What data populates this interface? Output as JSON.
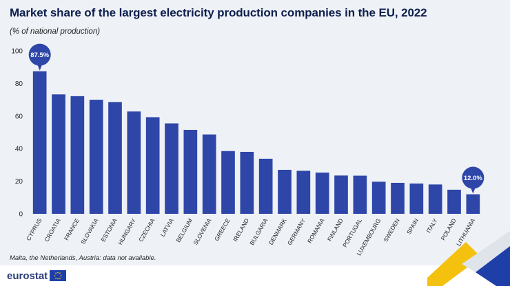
{
  "header": {
    "title": "Market share of the largest electricity production companies in the EU, 2022",
    "subtitle": "(% of national production)"
  },
  "footer": {
    "note": "Malta, the Netherlands, Austria: data not available.",
    "brand": "eurostat"
  },
  "colors": {
    "bar": "#2e46a8",
    "callout": "#2e46a8",
    "panel": "#eef1f6",
    "accent_yellow": "#f4c10f",
    "accent_blue": "#1f3fa8"
  },
  "icons": [
    "eu-flag-icon"
  ],
  "chart_data": {
    "type": "bar",
    "title": "Market share of the largest electricity production companies in the EU, 2022",
    "subtitle": "(% of national production)",
    "xlabel": "",
    "ylabel": "",
    "ylim": [
      0,
      100
    ],
    "yticks": [
      0,
      20,
      40,
      60,
      80,
      100
    ],
    "grid": false,
    "categories": [
      "CYPRUS",
      "CROATIA",
      "FRANCE",
      "SLOVAKIA",
      "ESTONIA",
      "HUNGARY",
      "CZECHIA",
      "LATVIA",
      "BELGIUM",
      "SLOVENIA",
      "GREECE",
      "IRELAND",
      "BULGARIA",
      "DENMARK",
      "GERMANY",
      "ROMANIA",
      "FINLAND",
      "PORTUGAL",
      "LUXEMBOURG",
      "SWEDEN",
      "SPAIN",
      "ITALY",
      "POLAND",
      "LITHUANIA"
    ],
    "values": [
      87.5,
      73.3,
      72.2,
      70.0,
      68.6,
      62.8,
      59.3,
      55.5,
      51.5,
      48.7,
      38.5,
      38.0,
      33.8,
      27.0,
      26.4,
      25.3,
      23.5,
      23.4,
      19.7,
      19.0,
      18.6,
      18.0,
      14.8,
      12.0
    ],
    "annotations": [
      {
        "category": "CYPRUS",
        "text": "87.5%"
      },
      {
        "category": "LITHUANIA",
        "text": "12.0%"
      }
    ]
  }
}
